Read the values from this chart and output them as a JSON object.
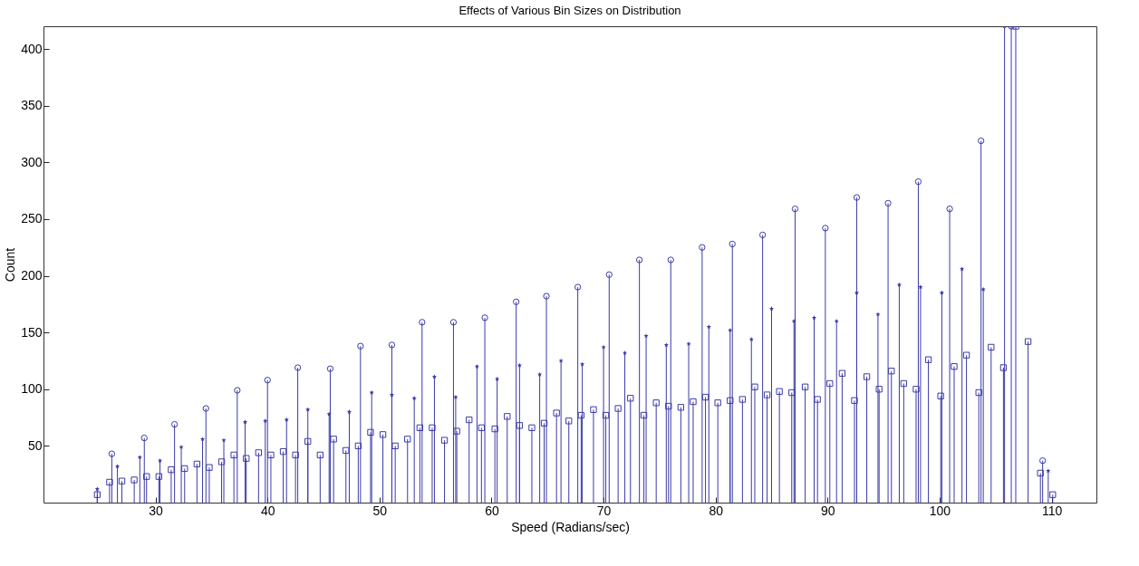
{
  "chart_data": {
    "type": "lollipop",
    "title": "Effects of Various Bin Sizes on Distribution",
    "xlabel": "Speed (Radians/sec)",
    "ylabel": "Count",
    "xlim": [
      20,
      114
    ],
    "xticks": [
      30,
      40,
      50,
      60,
      70,
      80,
      90,
      100,
      110
    ],
    "ylim": [
      0,
      420
    ],
    "yticks": [
      50,
      100,
      150,
      200,
      250,
      300,
      350,
      400
    ],
    "series": [
      {
        "color": "#3a3aa8",
        "marker": "circle",
        "x": [
          26.1,
          29.0,
          31.7,
          34.5,
          37.3,
          40.0,
          42.7,
          45.6,
          48.3,
          51.1,
          53.8,
          56.6,
          59.4,
          62.2,
          64.9,
          67.7,
          70.5,
          73.2,
          76.0,
          78.8,
          81.5,
          84.2,
          87.1,
          89.8,
          92.6,
          95.4,
          98.1,
          100.9,
          103.7,
          106.4,
          109.2
        ],
        "values": [
          43,
          57,
          69,
          83,
          99,
          108,
          119,
          118,
          138,
          139,
          159,
          159,
          163,
          177,
          182,
          190,
          201,
          214,
          214,
          225,
          228,
          236,
          259,
          242,
          269,
          264,
          283,
          259,
          319,
          420,
          37
        ]
      },
      {
        "color": "#3a3aa8",
        "marker": "star",
        "x": [
          24.8,
          26.6,
          28.6,
          30.4,
          32.3,
          34.2,
          36.1,
          38.0,
          39.8,
          41.7,
          43.6,
          45.5,
          47.3,
          49.3,
          51.1,
          53.1,
          54.9,
          56.8,
          58.7,
          60.5,
          62.5,
          64.3,
          66.2,
          68.1,
          70.0,
          71.9,
          73.8,
          75.6,
          77.6,
          79.4,
          81.3,
          83.2,
          85.0,
          87.0,
          88.8,
          90.8,
          92.6,
          94.5,
          96.4,
          98.3,
          100.2,
          102.0,
          103.9,
          105.8,
          109.7
        ],
        "values": [
          12,
          32,
          40,
          37,
          49,
          56,
          55,
          71,
          72,
          73,
          82,
          78,
          80,
          97,
          95,
          92,
          111,
          93,
          120,
          109,
          121,
          113,
          125,
          122,
          137,
          132,
          147,
          139,
          140,
          155,
          152,
          144,
          171,
          160,
          163,
          160,
          185,
          166,
          192,
          190,
          185,
          206,
          188,
          420,
          28
        ]
      },
      {
        "color": "#3a3aa8",
        "marker": "square",
        "x": [
          24.8,
          25.9,
          27.0,
          28.1,
          29.2,
          30.3,
          31.4,
          32.6,
          33.7,
          34.8,
          35.9,
          37.0,
          38.1,
          39.2,
          40.3,
          41.4,
          42.5,
          43.6,
          44.7,
          45.9,
          47.0,
          48.1,
          49.2,
          50.3,
          51.4,
          52.5,
          53.6,
          54.7,
          55.8,
          56.9,
          58.0,
          59.1,
          60.3,
          61.4,
          62.5,
          63.6,
          64.7,
          65.8,
          66.9,
          68.0,
          69.1,
          70.2,
          71.3,
          72.4,
          73.6,
          74.7,
          75.8,
          76.9,
          78.0,
          79.1,
          80.2,
          81.3,
          82.4,
          83.5,
          84.6,
          85.7,
          86.8,
          88.0,
          89.1,
          90.2,
          91.3,
          92.4,
          93.5,
          94.6,
          95.7,
          96.8,
          97.9,
          99.0,
          100.1,
          101.3,
          102.4,
          103.5,
          104.6,
          105.7,
          106.8,
          107.9,
          109.0,
          110.1
        ],
        "values": [
          7,
          18,
          19,
          20,
          23,
          23,
          29,
          30,
          34,
          31,
          36,
          42,
          39,
          44,
          42,
          45,
          42,
          54,
          42,
          56,
          46,
          50,
          62,
          60,
          50,
          56,
          66,
          66,
          55,
          63,
          73,
          66,
          65,
          76,
          68,
          66,
          70,
          79,
          72,
          77,
          82,
          77,
          83,
          92,
          77,
          88,
          85,
          84,
          89,
          93,
          88,
          90,
          91,
          102,
          95,
          98,
          97,
          102,
          91,
          105,
          114,
          90,
          111,
          100,
          116,
          105,
          100,
          126,
          94,
          120,
          130,
          97,
          137,
          119,
          420,
          142,
          26,
          7
        ]
      }
    ]
  }
}
